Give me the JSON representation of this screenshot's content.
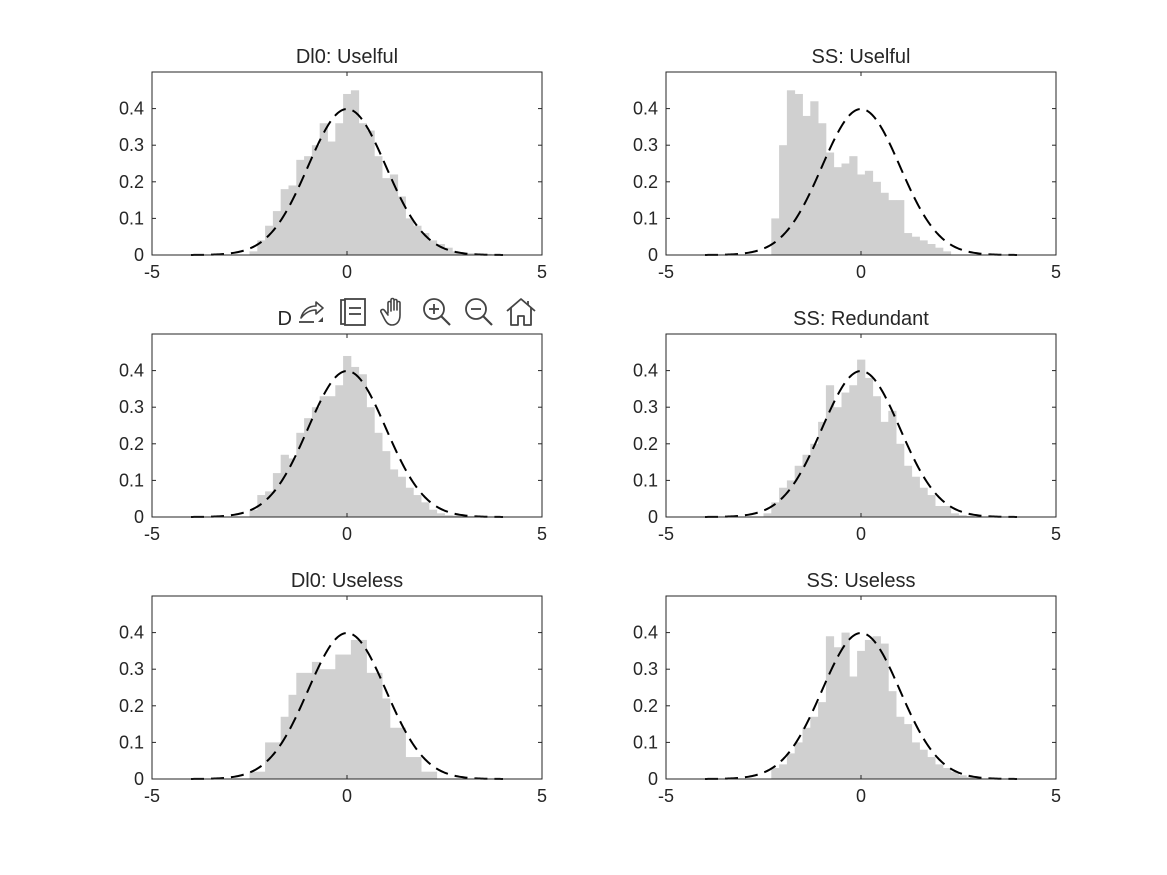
{
  "figure": {
    "background": "#ffffff",
    "bar_color": "#d0d0d0",
    "curve_color": "#000000",
    "axis_color": "#262626"
  },
  "toolbar": {
    "buttons": [
      {
        "name": "export-icon"
      },
      {
        "name": "brush-icon"
      },
      {
        "name": "pan-icon"
      },
      {
        "name": "zoom-in-icon"
      },
      {
        "name": "zoom-out-icon"
      },
      {
        "name": "home-icon"
      }
    ]
  },
  "chart_data": [
    {
      "type": "bar",
      "title": "Dl0: Uselful",
      "xlim": [
        -5,
        5
      ],
      "ylim": [
        0,
        0.5
      ],
      "xticks": [
        -5,
        0,
        5
      ],
      "yticks": [
        0,
        0.1,
        0.2,
        0.3,
        0.4
      ],
      "bin_edges": [
        -2.5,
        -2.3,
        -2.1,
        -1.9,
        -1.7,
        -1.5,
        -1.3,
        -1.1,
        -0.9,
        -0.7,
        -0.5,
        -0.3,
        -0.1,
        0.1,
        0.3,
        0.5,
        0.7,
        0.9,
        1.1,
        1.3,
        1.5,
        1.7,
        1.9,
        2.1,
        2.3,
        2.5,
        2.7,
        2.9,
        3.1,
        3.3,
        3.5,
        3.7,
        3.9,
        4.1
      ],
      "values": [
        0.01,
        0.04,
        0.08,
        0.12,
        0.18,
        0.19,
        0.26,
        0.27,
        0.3,
        0.36,
        0.31,
        0.36,
        0.44,
        0.45,
        0.36,
        0.34,
        0.27,
        0.21,
        0.22,
        0.16,
        0.1,
        0.08,
        0.06,
        0.04,
        0.03,
        0.02,
        0.01,
        0.005,
        0.005,
        0.004,
        0.003,
        0.002,
        0.001
      ],
      "series": [
        {
          "type": "histogram",
          "values": "bars"
        },
        {
          "type": "line",
          "style": "dashed",
          "function": "normal_pdf",
          "mean": 0,
          "std": 1,
          "x_range": [
            -4,
            4
          ]
        }
      ]
    },
    {
      "type": "bar",
      "title": "SS: Uselful",
      "xlim": [
        -5,
        5
      ],
      "ylim": [
        0,
        0.5
      ],
      "xticks": [
        -5,
        0,
        5
      ],
      "yticks": [
        0,
        0.1,
        0.2,
        0.3,
        0.4
      ],
      "bin_edges": [
        -2.3,
        -2.1,
        -1.9,
        -1.7,
        -1.5,
        -1.3,
        -1.1,
        -0.9,
        -0.7,
        -0.5,
        -0.3,
        -0.1,
        0.1,
        0.3,
        0.5,
        0.7,
        0.9,
        1.1,
        1.3,
        1.5,
        1.7,
        1.9,
        2.1,
        2.3
      ],
      "values": [
        0.1,
        0.3,
        0.45,
        0.44,
        0.38,
        0.42,
        0.36,
        0.28,
        0.24,
        0.25,
        0.27,
        0.22,
        0.23,
        0.2,
        0.17,
        0.15,
        0.15,
        0.06,
        0.05,
        0.04,
        0.03,
        0.02,
        0.01
      ],
      "series": [
        {
          "type": "histogram",
          "values": "bars"
        },
        {
          "type": "line",
          "style": "dashed",
          "function": "normal_pdf",
          "mean": 0,
          "std": 1,
          "x_range": [
            -4,
            4
          ]
        }
      ]
    },
    {
      "type": "bar",
      "title": "Dl0: Redundant",
      "xlim": [
        -5,
        5
      ],
      "ylim": [
        0,
        0.5
      ],
      "xticks": [
        -5,
        0,
        5
      ],
      "yticks": [
        0,
        0.1,
        0.2,
        0.3,
        0.4
      ],
      "bin_edges": [
        -2.5,
        -2.3,
        -2.1,
        -1.9,
        -1.7,
        -1.5,
        -1.3,
        -1.1,
        -0.9,
        -0.7,
        -0.5,
        -0.3,
        -0.1,
        0.1,
        0.3,
        0.5,
        0.7,
        0.9,
        1.1,
        1.3,
        1.5,
        1.7,
        1.9,
        2.1,
        2.3,
        2.5,
        2.7,
        2.9,
        3.1,
        3.3
      ],
      "values": [
        0.02,
        0.06,
        0.07,
        0.12,
        0.17,
        0.16,
        0.23,
        0.27,
        0.3,
        0.33,
        0.33,
        0.36,
        0.44,
        0.41,
        0.39,
        0.3,
        0.23,
        0.18,
        0.13,
        0.11,
        0.08,
        0.06,
        0.04,
        0.02,
        0.01,
        0.005,
        0.004,
        0.003,
        0.002
      ],
      "series": [
        {
          "type": "histogram",
          "values": "bars"
        },
        {
          "type": "line",
          "style": "dashed",
          "function": "normal_pdf",
          "mean": 0,
          "std": 1,
          "x_range": [
            -4,
            4
          ]
        }
      ]
    },
    {
      "type": "bar",
      "title": "SS: Redundant",
      "xlim": [
        -5,
        5
      ],
      "ylim": [
        0,
        0.5
      ],
      "xticks": [
        -5,
        0,
        5
      ],
      "yticks": [
        0,
        0.1,
        0.2,
        0.3,
        0.4
      ],
      "bin_edges": [
        -2.5,
        -2.3,
        -2.1,
        -1.9,
        -1.7,
        -1.5,
        -1.3,
        -1.1,
        -0.9,
        -0.7,
        -0.5,
        -0.3,
        -0.1,
        0.1,
        0.3,
        0.5,
        0.7,
        0.9,
        1.1,
        1.3,
        1.5,
        1.7,
        1.9,
        2.1,
        2.3,
        2.5,
        2.7,
        2.9,
        3.1
      ],
      "values": [
        0.01,
        0.04,
        0.08,
        0.1,
        0.14,
        0.17,
        0.2,
        0.26,
        0.36,
        0.3,
        0.34,
        0.36,
        0.43,
        0.38,
        0.33,
        0.26,
        0.29,
        0.2,
        0.14,
        0.11,
        0.08,
        0.06,
        0.03,
        0.03,
        0.01,
        0.005,
        0.003,
        0.002
      ],
      "series": [
        {
          "type": "histogram",
          "values": "bars"
        },
        {
          "type": "line",
          "style": "dashed",
          "function": "normal_pdf",
          "mean": 0,
          "std": 1,
          "x_range": [
            -4,
            4
          ]
        }
      ]
    },
    {
      "type": "bar",
      "title": "Dl0: Useless",
      "xlim": [
        -5,
        5
      ],
      "ylim": [
        0,
        0.5
      ],
      "xticks": [
        -5,
        0,
        5
      ],
      "yticks": [
        0,
        0.1,
        0.2,
        0.3,
        0.4
      ],
      "bin_edges": [
        -2.5,
        -2.1,
        -1.7,
        -1.5,
        -1.3,
        -0.9,
        -0.7,
        -0.3,
        0.1,
        0.5,
        0.9,
        1.1,
        1.5,
        1.9,
        2.3
      ],
      "values": [
        0.02,
        0.1,
        0.17,
        0.23,
        0.29,
        0.32,
        0.3,
        0.34,
        0.38,
        0.29,
        0.22,
        0.14,
        0.06,
        0.02
      ],
      "series": [
        {
          "type": "histogram",
          "values": "bars"
        },
        {
          "type": "line",
          "style": "dashed",
          "function": "normal_pdf",
          "mean": 0,
          "std": 1,
          "x_range": [
            -4,
            4
          ]
        }
      ]
    },
    {
      "type": "bar",
      "title": "SS: Useless",
      "xlim": [
        -5,
        5
      ],
      "ylim": [
        0,
        0.5
      ],
      "xticks": [
        -5,
        0,
        5
      ],
      "yticks": [
        0,
        0.1,
        0.2,
        0.3,
        0.4
      ],
      "bin_edges": [
        -2.3,
        -2.1,
        -1.9,
        -1.7,
        -1.5,
        -1.3,
        -1.1,
        -0.9,
        -0.7,
        -0.5,
        -0.3,
        -0.1,
        0.1,
        0.3,
        0.5,
        0.7,
        0.9,
        1.1,
        1.3,
        1.5,
        1.7,
        1.9,
        2.1,
        2.3,
        2.5,
        2.7,
        2.9,
        3.1
      ],
      "values": [
        0.03,
        0.04,
        0.07,
        0.1,
        0.14,
        0.17,
        0.21,
        0.39,
        0.36,
        0.4,
        0.28,
        0.35,
        0.38,
        0.39,
        0.37,
        0.24,
        0.17,
        0.15,
        0.1,
        0.08,
        0.06,
        0.04,
        0.03,
        0.02,
        0.01,
        0.005,
        0.003
      ],
      "series": [
        {
          "type": "histogram",
          "values": "bars"
        },
        {
          "type": "line",
          "style": "dashed",
          "function": "normal_pdf",
          "mean": 0,
          "std": 1,
          "x_range": [
            -4,
            4
          ]
        }
      ]
    }
  ]
}
